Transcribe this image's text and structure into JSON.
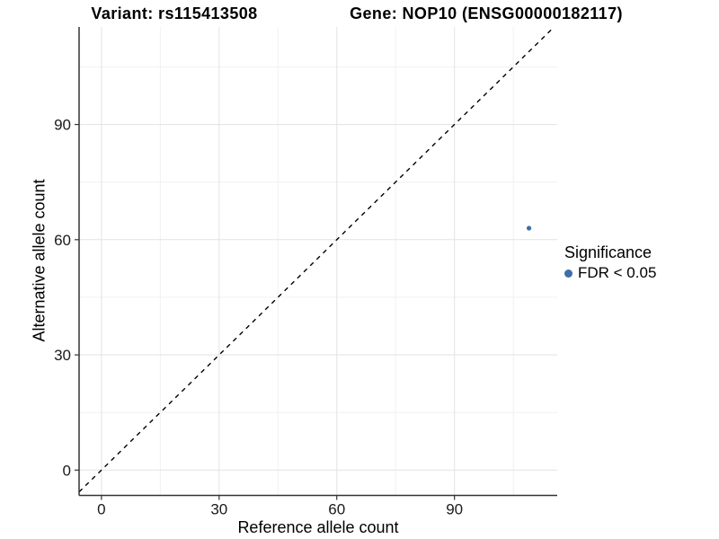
{
  "chart_data": {
    "type": "scatter",
    "title_left": "Variant: rs115413508",
    "title_right": "Gene: NOP10 (ENSG00000182117)",
    "xlabel": "Reference allele count",
    "ylabel": "Alternative allele count",
    "x_ticks": [
      0,
      30,
      60,
      90
    ],
    "y_ticks": [
      0,
      30,
      60,
      90
    ],
    "x_minor_ticks": [
      15,
      45,
      75,
      105
    ],
    "y_minor_ticks": [
      15,
      45,
      75,
      105
    ],
    "xlim": [
      -5.7,
      116.2
    ],
    "ylim": [
      -6.6,
      115.4
    ],
    "points": [
      {
        "x": 109,
        "y": 63,
        "series": "FDR < 0.05"
      }
    ],
    "identity_line": {
      "type": "y=x",
      "style": "dashed",
      "color": "#000000"
    },
    "legend": {
      "title": "Significance",
      "items": [
        {
          "label": "FDR < 0.05",
          "color": "#3d6fa8"
        }
      ]
    },
    "colors": {
      "point": "#3d6fa8",
      "grid_major": "#e3e3e3",
      "grid_minor": "#f1f1f1",
      "axis_line": "#333333",
      "tick_label": "#1a1a1a"
    },
    "grid": true,
    "legend_position": "right"
  }
}
